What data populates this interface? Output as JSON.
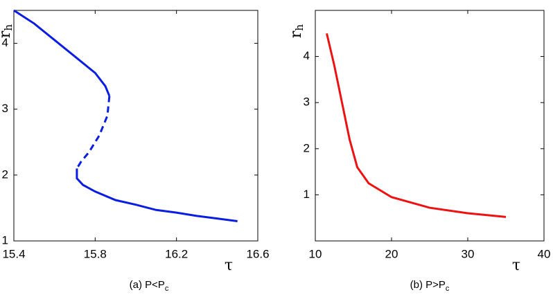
{
  "charts": [
    {
      "type": "line",
      "caption": {
        "text": "(a) P<P",
        "sub": "c"
      },
      "xlabel": "τ",
      "ylabel": {
        "text": "r",
        "sub": "h"
      },
      "xlim": [
        15.4,
        16.6
      ],
      "xticks": [
        15.4,
        15.8,
        16.2,
        16.6
      ],
      "ylim": [
        1,
        4.5
      ],
      "yticks": [
        1,
        2,
        3,
        4
      ],
      "color": "#0a1de0",
      "segments": [
        {
          "style": "solid",
          "x": [
            15.4,
            15.5,
            15.6,
            15.7,
            15.8,
            15.85,
            15.87
          ],
          "y": [
            4.5,
            4.3,
            4.05,
            3.8,
            3.55,
            3.35,
            3.2
          ]
        },
        {
          "style": "dashed",
          "x": [
            15.87,
            15.86,
            15.82,
            15.77,
            15.73,
            15.71
          ],
          "y": [
            3.2,
            2.9,
            2.6,
            2.35,
            2.2,
            2.1
          ]
        },
        {
          "style": "solid",
          "x": [
            15.71,
            15.71,
            15.74,
            15.8,
            15.9,
            16.0,
            16.1,
            16.2,
            16.3,
            16.4,
            16.5
          ],
          "y": [
            2.1,
            1.95,
            1.85,
            1.75,
            1.62,
            1.55,
            1.47,
            1.43,
            1.38,
            1.34,
            1.3
          ]
        }
      ]
    },
    {
      "type": "line",
      "caption": {
        "text": "(b) P>P",
        "sub": "c"
      },
      "xlabel": "τ",
      "ylabel": {
        "text": "r",
        "sub": "h"
      },
      "xlim": [
        10,
        40
      ],
      "xticks": [
        10,
        20,
        30,
        40
      ],
      "ylim": [
        0,
        5
      ],
      "yticks": [
        1,
        2,
        3,
        4
      ],
      "color": "#ee1111",
      "segments": [
        {
          "style": "solid",
          "x": [
            11.5,
            12.5,
            13.5,
            14.5,
            15.5,
            17,
            20,
            25,
            30,
            35
          ],
          "y": [
            4.5,
            3.8,
            3.0,
            2.2,
            1.6,
            1.25,
            0.95,
            0.72,
            0.6,
            0.52
          ]
        }
      ]
    }
  ]
}
